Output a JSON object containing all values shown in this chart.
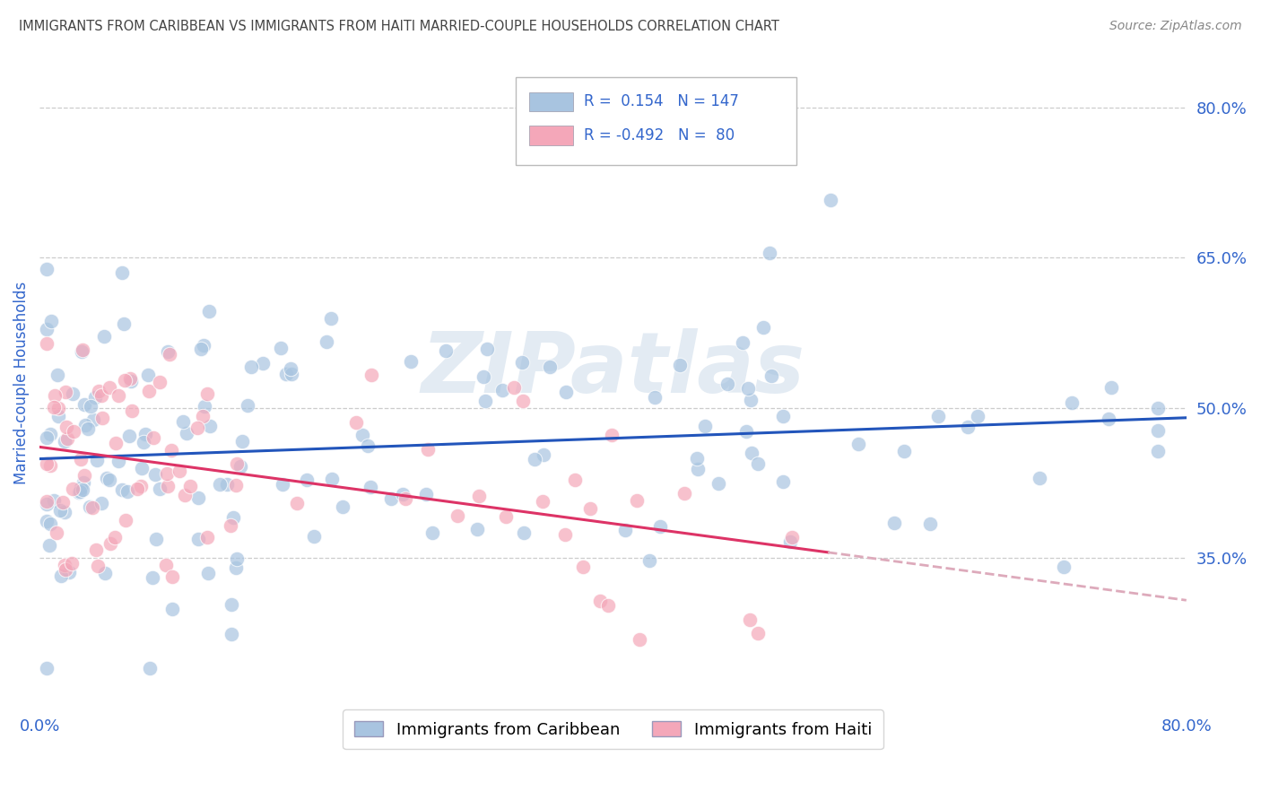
{
  "title": "IMMIGRANTS FROM CARIBBEAN VS IMMIGRANTS FROM HAITI MARRIED-COUPLE HOUSEHOLDS CORRELATION CHART",
  "source": "Source: ZipAtlas.com",
  "ylabel": "Married-couple Households",
  "xlim": [
    0.0,
    0.8
  ],
  "ylim": [
    0.2,
    0.85
  ],
  "x_tick_labels": [
    "0.0%",
    "80.0%"
  ],
  "y_tick_labels_right": [
    "80.0%",
    "65.0%",
    "50.0%",
    "35.0%"
  ],
  "y_ticks_right": [
    0.8,
    0.65,
    0.5,
    0.35
  ],
  "legend1_label": "Immigrants from Caribbean",
  "legend2_label": "Immigrants from Haiti",
  "R1": 0.154,
  "N1": 147,
  "R2": -0.492,
  "N2": 80,
  "scatter_color_blue": "#A8C4E0",
  "scatter_color_pink": "#F4A7B9",
  "line_color_blue": "#2255BB",
  "line_color_pink": "#DD3366",
  "line_color_pink_dash": "#DDAABB",
  "watermark": "ZIPatlas",
  "background_color": "#FFFFFF",
  "grid_color": "#CCCCCC",
  "title_color": "#444444",
  "axis_label_color": "#3366CC"
}
